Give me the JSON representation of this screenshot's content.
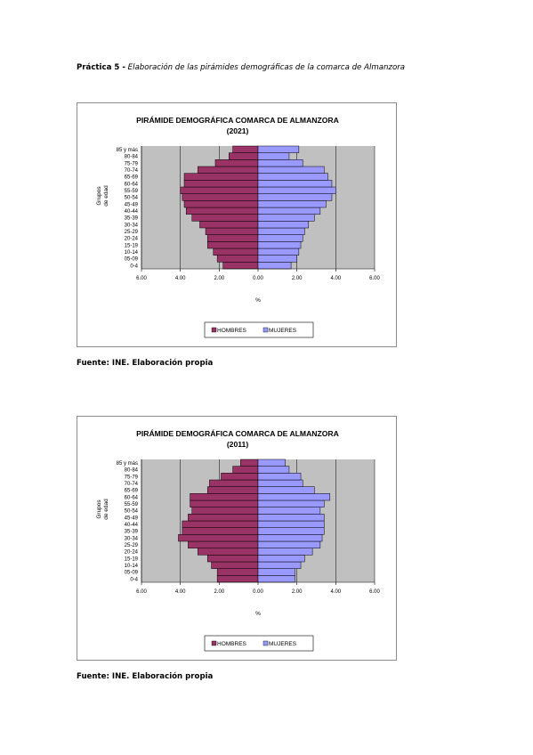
{
  "heading": {
    "label": "Práctica 5 -",
    "text": "Elaboración de las pirámides demográficas de la comarca de Almanzora"
  },
  "sources": [
    "Fuente: INE. Elaboración propia",
    "Fuente: INE. Elaboración propia"
  ],
  "colors": {
    "hombres": "#993366",
    "mujeres": "#9999ff",
    "plot_bg": "#c0c0c0"
  },
  "chart_data": [
    {
      "type": "bar",
      "orientation": "horizontal-pyramid",
      "title": "PIRÁMIDE DEMOGRÁFICA COMARCA DE ALMANZORA",
      "subtitle": "(2021)",
      "ylabel": "Grupos de edad",
      "xlabel": "%",
      "xlim": [
        -6,
        6
      ],
      "x_ticks": [
        "6.00",
        "4.00",
        "2.00",
        "0.00",
        "2.00",
        "4.00",
        "6.00"
      ],
      "grid": true,
      "legend": "bottom-center",
      "categories": [
        "0-4",
        "05-09",
        "10-14",
        "15-19",
        "20-24",
        "25-29",
        "30-34",
        "35-39",
        "40-44",
        "45-49",
        "50-54",
        "55-59",
        "60-64",
        "65-69",
        "70-74",
        "75-79",
        "80-84",
        "85 y más"
      ],
      "series": [
        {
          "name": "HOMBRES",
          "values": [
            1.8,
            2.1,
            2.3,
            2.6,
            2.6,
            2.7,
            3.0,
            3.4,
            3.7,
            3.8,
            3.9,
            4.0,
            3.8,
            3.8,
            3.1,
            2.2,
            1.5,
            1.3
          ]
        },
        {
          "name": "MUJERES",
          "values": [
            1.7,
            2.0,
            2.1,
            2.2,
            2.3,
            2.4,
            2.6,
            2.9,
            3.2,
            3.5,
            3.8,
            4.0,
            3.8,
            3.6,
            3.4,
            2.3,
            1.6,
            2.1
          ]
        }
      ]
    },
    {
      "type": "bar",
      "orientation": "horizontal-pyramid",
      "title": "PIRÁMIDE DEMOGRÁFICA COMARCA DE ALMANZORA",
      "subtitle": "(2011)",
      "ylabel": "Grupos de edad",
      "xlabel": "%",
      "xlim": [
        -6,
        6
      ],
      "x_ticks": [
        "6.00",
        "4.00",
        "2.00",
        "0.00",
        "2.00",
        "4.00",
        "6.00"
      ],
      "grid": true,
      "legend": "bottom-center",
      "categories": [
        "0-4",
        "05-09",
        "10-14",
        "15-19",
        "20-24",
        "25-29",
        "30-34",
        "35-39",
        "40-44",
        "45-49",
        "50-54",
        "55-59",
        "60-64",
        "65-69",
        "70-74",
        "75-79",
        "80-84",
        "85 y más"
      ],
      "series": [
        {
          "name": "HOMBRES",
          "values": [
            2.1,
            2.1,
            2.4,
            2.6,
            3.1,
            3.6,
            4.1,
            3.9,
            3.9,
            3.6,
            3.4,
            3.5,
            3.5,
            2.6,
            2.5,
            1.9,
            1.3,
            0.9
          ]
        },
        {
          "name": "MUJERES",
          "values": [
            1.9,
            1.9,
            2.2,
            2.4,
            2.8,
            3.2,
            3.3,
            3.4,
            3.4,
            3.4,
            3.2,
            3.4,
            3.7,
            2.9,
            2.3,
            2.2,
            1.6,
            1.4
          ]
        }
      ]
    }
  ]
}
